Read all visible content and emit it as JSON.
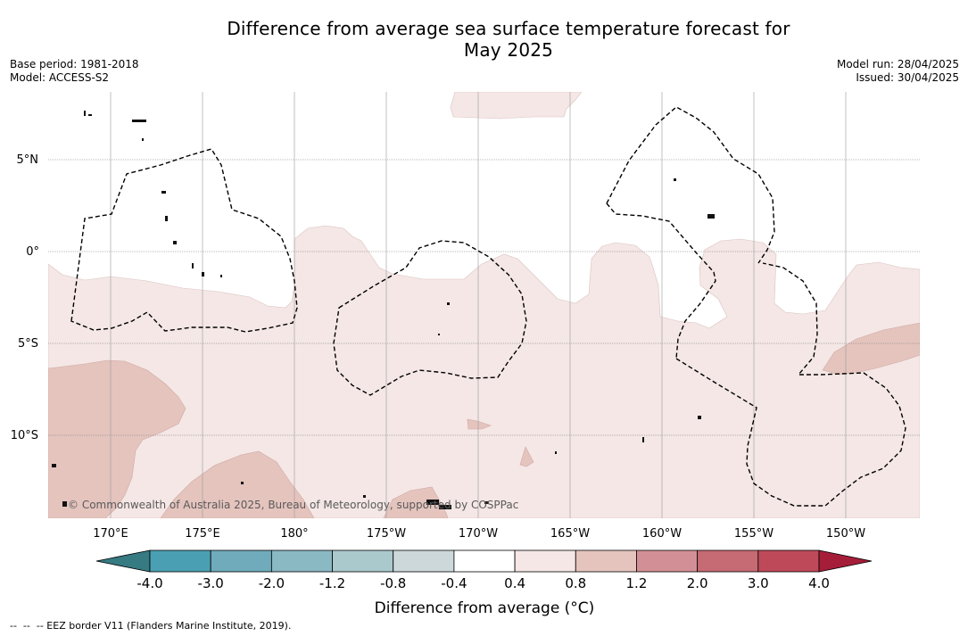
{
  "title": {
    "line1": "Difference from average sea surface temperature forecast for",
    "line2": "May 2025"
  },
  "meta_left": {
    "base_period": "Base period: 1981-2018",
    "model": "Model: ACCESS-S2"
  },
  "meta_right": {
    "model_run": "Model run: 28/04/2025",
    "issued": "Issued: 30/04/2025"
  },
  "map": {
    "lat_labels": [
      "5°N",
      "0°",
      "5°S",
      "10°S"
    ],
    "lon_labels": [
      "170°E",
      "175°E",
      "180°",
      "175°W",
      "170°W",
      "165°W",
      "160°W",
      "155°W",
      "150°W"
    ],
    "copyright": "© Commonwealth of Australia 2025, Bureau of Meteorology, supported by COSPPac",
    "legend_line_style": "dashed black = EEZ border",
    "fill_classes": [
      "0.4 to 0.8",
      "0.8 to 1.2"
    ]
  },
  "colorbar": {
    "label": "Difference from average (°C)",
    "tick_labels": [
      "-4.0",
      "-3.0",
      "-2.0",
      "-1.2",
      "-0.8",
      "-0.4",
      "0.4",
      "0.8",
      "1.2",
      "2.0",
      "3.0",
      "4.0"
    ],
    "colors": [
      "#367a82",
      "#4aa0b2",
      "#6fabbb",
      "#8ab8c3",
      "#aac9cd",
      "#ccd8d9",
      "#ffffff",
      "#f4e7e5",
      "#e5c4be",
      "#d38f96",
      "#c66a73",
      "#be4a59",
      "#a61d3a"
    ]
  },
  "footer": "--  --  -- EEZ border V11 (Flanders Marine Institute, 2019)."
}
